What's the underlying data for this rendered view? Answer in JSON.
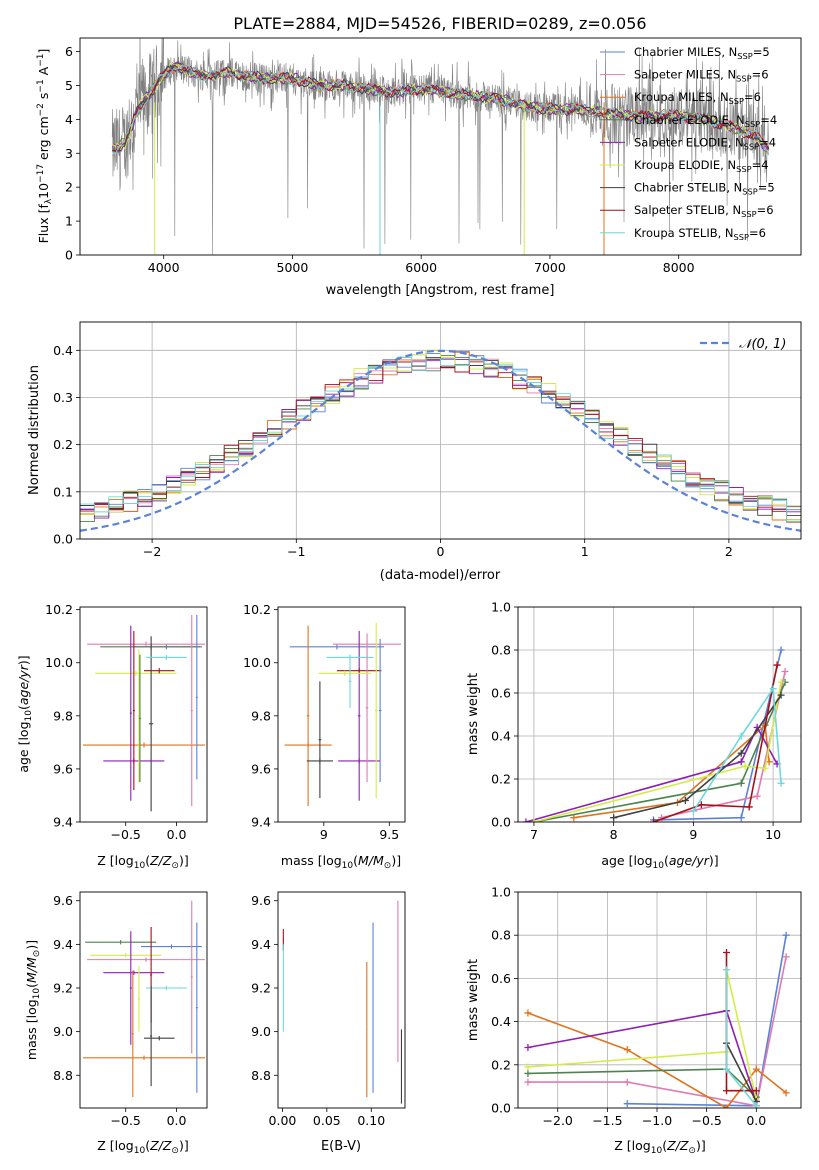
{
  "figure_title": "PLATE=2884, MJD=54526, FIBERID=0289, z=0.056",
  "colors": {
    "chabrier_miles": "#5b82d9",
    "salpeter_miles": "#e07bb1",
    "kroupa_miles": "#e0731f",
    "chabrier_elodie": "#4e8350",
    "salpeter_elodie": "#8e1fb5",
    "kroupa_elodie": "#d4ec4a",
    "chabrier_stelib": "#404040",
    "salpeter_stelib": "#a80f1a",
    "kroupa_stelib": "#6fd8dc",
    "data": "#808080"
  },
  "chart_data": [
    {
      "id": "spectrum",
      "type": "line",
      "title": "PLATE=2884, MJD=54526, FIBERID=0289, z=0.056",
      "xlabel": "wavelength [Angstrom, rest frame]",
      "ylabel": "Flux [f_λ 10^-17 erg cm^-2 s^-1 A^-1]",
      "xlim": [
        3350,
        8950
      ],
      "ylim": [
        0,
        6.4
      ],
      "xticks": [
        4000,
        5000,
        6000,
        7000,
        8000
      ],
      "yticks": [
        0,
        1,
        2,
        3,
        4,
        5,
        6
      ],
      "legend_position": "top-right",
      "continuum": {
        "x": [
          3600,
          3700,
          3800,
          3900,
          4000,
          4100,
          4200,
          4300,
          4400,
          4500,
          4600,
          4800,
          5000,
          5200,
          5400,
          5600,
          5800,
          6000,
          6200,
          6400,
          6600,
          6800,
          7000,
          7200,
          7400,
          7600,
          7800,
          8000,
          8200,
          8400,
          8600,
          8700
        ],
        "y": [
          3.1,
          3.3,
          4.3,
          4.8,
          5.3,
          5.6,
          5.4,
          5.3,
          5.3,
          5.4,
          5.3,
          5.2,
          5.2,
          5.0,
          5.0,
          4.9,
          4.8,
          4.9,
          4.8,
          4.7,
          4.6,
          4.4,
          4.3,
          4.3,
          4.2,
          4.1,
          4.1,
          4.1,
          4.0,
          3.8,
          3.5,
          3.1
        ]
      },
      "series": [
        {
          "key": "chabrier_miles",
          "label": "Chabrier MILES, N",
          "sub": "SSP",
          "tail": "=5"
        },
        {
          "key": "salpeter_miles",
          "label": "Salpeter MILES, N",
          "sub": "SSP",
          "tail": "=6"
        },
        {
          "key": "kroupa_miles",
          "label": "Kroupa MILES, N",
          "sub": "SSP",
          "tail": "=6"
        },
        {
          "key": "chabrier_elodie",
          "label": "Chabrier ELODIE, N",
          "sub": "SSP",
          "tail": "=4"
        },
        {
          "key": "salpeter_elodie",
          "label": "Salpeter ELODIE, N",
          "sub": "SSP",
          "tail": "=4"
        },
        {
          "key": "kroupa_elodie",
          "label": "Kroupa ELODIE, N",
          "sub": "SSP",
          "tail": "=4"
        },
        {
          "key": "chabrier_stelib",
          "label": "Chabrier STELIB, N",
          "sub": "SSP",
          "tail": "=5"
        },
        {
          "key": "salpeter_stelib",
          "label": "Salpeter STELIB, N",
          "sub": "SSP",
          "tail": "=6"
        },
        {
          "key": "kroupa_stelib",
          "label": "Kroupa STELIB, N",
          "sub": "SSP",
          "tail": "=6"
        }
      ]
    },
    {
      "id": "residuals",
      "type": "step-histogram",
      "xlabel": "(data-model)/error",
      "ylabel": "Normed distribution",
      "xlim": [
        -2.5,
        2.5
      ],
      "ylim": [
        0,
        0.46
      ],
      "xticks": [
        -2,
        -1,
        0,
        1,
        2
      ],
      "xtick_labels": [
        "−2",
        "−1",
        "0",
        "1",
        "2"
      ],
      "yticks": [
        0.0,
        0.1,
        0.2,
        0.3,
        0.4
      ],
      "bin_width": 0.1,
      "bin_start": -2.5,
      "grid": true,
      "legend_position": "top-right",
      "legend_label": "𝒩(0, 1)",
      "reference_curve": {
        "type": "gaussian",
        "mean": 0,
        "sigma": 1
      }
    },
    {
      "id": "age_vs_Z",
      "type": "errorbar",
      "xlabel": "Z [log10(Z/Z⊙)]",
      "ylabel": "age [log10(age/yr)]",
      "xlim": [
        -0.95,
        0.3
      ],
      "ylim": [
        9.4,
        10.21
      ],
      "xticks": [
        -0.5,
        0.0
      ],
      "xtick_labels": [
        "−0.5",
        "0.0"
      ],
      "yticks": [
        9.4,
        9.6,
        9.8,
        10.0,
        10.2
      ],
      "points": [
        {
          "key": "chabrier_miles",
          "x": -0.1,
          "xerr": 0.33,
          "y": 10.06,
          "yerr": 0.01
        },
        {
          "key": "salpeter_miles",
          "x": -0.3,
          "xerr": 0.58,
          "y": 10.07,
          "yerr": 0.01
        },
        {
          "key": "kroupa_miles",
          "x": -0.32,
          "xerr": 0.6,
          "y": 9.69,
          "yerr": 0.01
        },
        {
          "key": "chabrier_elodie",
          "x": -0.25,
          "xerr": 0.5,
          "y": 10.06,
          "yerr": 0.01
        },
        {
          "key": "salpeter_elodie",
          "x": -0.42,
          "xerr": 0.3,
          "y": 9.63,
          "yerr": 0.01
        },
        {
          "key": "kroupa_elodie",
          "x": -0.4,
          "xerr": 0.4,
          "y": 9.96,
          "yerr": 0.01
        },
        {
          "key": "chabrier_stelib",
          "x": -0.25,
          "xerr": 0.02,
          "y": 9.77,
          "yerr": 0.33
        },
        {
          "key": "salpeter_stelib",
          "x": -0.17,
          "xerr": 0.15,
          "y": 9.97,
          "yerr": 0.01
        },
        {
          "key": "kroupa_stelib",
          "x": -0.1,
          "xerr": 0.2,
          "y": 10.02,
          "yerr": 0.01
        },
        {
          "key": "salpeter_miles",
          "x": 0.15,
          "xerr": 0.01,
          "y": 9.82,
          "yerr": 0.36
        },
        {
          "key": "chabrier_miles",
          "x": 0.2,
          "xerr": 0.01,
          "y": 9.87,
          "yerr": 0.31
        },
        {
          "key": "salpeter_elodie",
          "x": -0.45,
          "xerr": 0.01,
          "y": 9.81,
          "yerr": 0.33
        },
        {
          "key": "salpeter_stelib",
          "x": -0.42,
          "xerr": 0.01,
          "y": 9.82,
          "yerr": 0.3
        },
        {
          "key": "kroupa_elodie",
          "x": -0.37,
          "xerr": 0.01,
          "y": 9.8,
          "yerr": 0.25
        },
        {
          "key": "chabrier_elodie",
          "x": -0.36,
          "xerr": 0.01,
          "y": 9.79,
          "yerr": 0.24
        }
      ]
    },
    {
      "id": "age_vs_mass",
      "type": "errorbar",
      "xlabel": "mass [log10(M/M⊙)]",
      "xlim": [
        8.65,
        9.62
      ],
      "ylim": [
        9.4,
        10.21
      ],
      "xticks": [
        9.0,
        9.5
      ],
      "yticks": [
        9.4,
        9.6,
        9.8,
        10.0,
        10.2
      ],
      "points": [
        {
          "key": "chabrier_miles",
          "x": 9.1,
          "xerr": 0.36,
          "y": 10.06,
          "yerr": 0.01
        },
        {
          "key": "salpeter_miles",
          "x": 9.33,
          "xerr": 0.26,
          "y": 10.07,
          "yerr": 0.01
        },
        {
          "key": "kroupa_miles",
          "x": 8.88,
          "xerr": 0.18,
          "y": 9.69,
          "yerr": 0.01
        },
        {
          "key": "kroupa_miles",
          "x": 8.88,
          "xerr": 0.01,
          "y": 9.8,
          "yerr": 0.34
        },
        {
          "key": "chabrier_stelib",
          "x": 8.97,
          "xerr": 0.01,
          "y": 9.71,
          "yerr": 0.22
        },
        {
          "key": "chabrier_stelib",
          "x": 8.97,
          "xerr": 0.1,
          "y": 9.63,
          "yerr": 0.01
        },
        {
          "key": "salpeter_elodie",
          "x": 9.27,
          "xerr": 0.16,
          "y": 9.63,
          "yerr": 0.01
        },
        {
          "key": "salpeter_elodie",
          "x": 9.27,
          "xerr": 0.01,
          "y": 9.8,
          "yerr": 0.32
        },
        {
          "key": "salpeter_stelib",
          "x": 9.27,
          "xerr": 0.17,
          "y": 9.97,
          "yerr": 0.01
        },
        {
          "key": "kroupa_stelib",
          "x": 9.2,
          "xerr": 0.18,
          "y": 10.02,
          "yerr": 0.01
        },
        {
          "key": "kroupa_stelib",
          "x": 9.2,
          "xerr": 0.01,
          "y": 9.93,
          "yerr": 0.1
        },
        {
          "key": "kroupa_elodie",
          "x": 9.4,
          "xerr": 0.01,
          "y": 9.82,
          "yerr": 0.33
        },
        {
          "key": "chabrier_miles",
          "x": 9.43,
          "xerr": 0.01,
          "y": 9.82,
          "yerr": 0.27
        },
        {
          "key": "salpeter_miles",
          "x": 9.33,
          "xerr": 0.01,
          "y": 9.83,
          "yerr": 0.28
        },
        {
          "key": "kroupa_elodie",
          "x": 9.16,
          "xerr": 0.2,
          "y": 9.96,
          "yerr": 0.01
        }
      ]
    },
    {
      "id": "massweight_vs_age",
      "type": "line",
      "xlabel": "age [log10(age/yr)]",
      "ylabel": "mass weight",
      "xlim": [
        6.8,
        10.35
      ],
      "ylim": [
        0,
        1.0
      ],
      "xticks": [
        7,
        8,
        9,
        10
      ],
      "yticks": [
        0.0,
        0.2,
        0.4,
        0.6,
        0.8,
        1.0
      ],
      "grid": true,
      "series": [
        {
          "key": "chabrier_miles",
          "x": [
            8.5,
            9.6,
            10.1
          ],
          "y": [
            0.01,
            0.02,
            0.8
          ]
        },
        {
          "key": "salpeter_miles",
          "x": [
            8.6,
            9.8,
            10.15
          ],
          "y": [
            0.02,
            0.12,
            0.7
          ]
        },
        {
          "key": "kroupa_miles",
          "x": [
            7.5,
            8.8,
            9.9,
            9.95
          ],
          "y": [
            0.02,
            0.09,
            0.45,
            0.28
          ]
        },
        {
          "key": "chabrier_elodie",
          "x": [
            7.0,
            9.6,
            10.15
          ],
          "y": [
            0.0,
            0.18,
            0.65
          ]
        },
        {
          "key": "salpeter_elodie",
          "x": [
            6.9,
            9.6,
            9.8,
            10.05
          ],
          "y": [
            0.0,
            0.28,
            0.44,
            0.27
          ]
        },
        {
          "key": "kroupa_elodie",
          "x": [
            7.0,
            9.65,
            9.9,
            10.1
          ],
          "y": [
            0.0,
            0.26,
            0.25,
            0.65
          ]
        },
        {
          "key": "chabrier_stelib",
          "x": [
            8.0,
            8.9,
            9.6,
            10.1
          ],
          "y": [
            0.02,
            0.1,
            0.32,
            0.59
          ]
        },
        {
          "key": "salpeter_stelib",
          "x": [
            8.5,
            9.1,
            9.7,
            10.05
          ],
          "y": [
            0.0,
            0.08,
            0.07,
            0.73
          ]
        },
        {
          "key": "kroupa_stelib",
          "x": [
            9.0,
            9.6,
            10.0,
            10.1
          ],
          "y": [
            0.05,
            0.4,
            0.62,
            0.18
          ]
        }
      ]
    },
    {
      "id": "mass_vs_Z",
      "type": "errorbar",
      "xlabel": "Z [log10(Z/Z⊙)]",
      "ylabel": "mass [log10(M/M⊙)]",
      "xlim": [
        -0.95,
        0.3
      ],
      "ylim": [
        8.65,
        9.64
      ],
      "xticks": [
        -0.5,
        0.0
      ],
      "xtick_labels": [
        "−0.5",
        "0.0"
      ],
      "yticks": [
        8.8,
        9.0,
        9.2,
        9.4,
        9.6
      ],
      "points": [
        {
          "key": "chabrier_miles",
          "x": -0.05,
          "xerr": 0.3,
          "y": 9.39,
          "yerr": 0.01
        },
        {
          "key": "salpeter_miles",
          "x": -0.3,
          "xerr": 0.58,
          "y": 9.33,
          "yerr": 0.01
        },
        {
          "key": "kroupa_miles",
          "x": -0.32,
          "xerr": 0.6,
          "y": 8.88,
          "yerr": 0.01
        },
        {
          "key": "chabrier_elodie",
          "x": -0.55,
          "xerr": 0.35,
          "y": 9.41,
          "yerr": 0.01
        },
        {
          "key": "salpeter_elodie",
          "x": -0.42,
          "xerr": 0.3,
          "y": 9.27,
          "yerr": 0.01
        },
        {
          "key": "kroupa_elodie",
          "x": -0.5,
          "xerr": 0.35,
          "y": 9.35,
          "yerr": 0.01
        },
        {
          "key": "chabrier_stelib",
          "x": -0.17,
          "xerr": 0.15,
          "y": 8.97,
          "yerr": 0.01
        },
        {
          "key": "salpeter_stelib",
          "x": -0.25,
          "xerr": 0.01,
          "y": 9.26,
          "yerr": 0.22
        },
        {
          "key": "kroupa_stelib",
          "x": -0.1,
          "xerr": 0.2,
          "y": 9.2,
          "yerr": 0.01
        },
        {
          "key": "salpeter_miles",
          "x": 0.15,
          "xerr": 0.01,
          "y": 9.25,
          "yerr": 0.35
        },
        {
          "key": "chabrier_miles",
          "x": 0.2,
          "xerr": 0.01,
          "y": 9.11,
          "yerr": 0.39
        },
        {
          "key": "salpeter_elodie",
          "x": -0.45,
          "xerr": 0.01,
          "y": 9.2,
          "yerr": 0.26
        },
        {
          "key": "kroupa_elodie",
          "x": -0.37,
          "xerr": 0.01,
          "y": 9.15,
          "yerr": 0.15
        },
        {
          "key": "kroupa_miles",
          "x": -0.43,
          "xerr": 0.01,
          "y": 8.99,
          "yerr": 0.29
        },
        {
          "key": "chabrier_stelib",
          "x": -0.25,
          "xerr": 0.01,
          "y": 8.98,
          "yerr": 0.23
        }
      ]
    },
    {
      "id": "mass_vs_ebv",
      "type": "errorbar",
      "xlabel": "E(B-V)",
      "xlim": [
        -0.005,
        0.138
      ],
      "ylim": [
        8.65,
        9.64
      ],
      "xticks": [
        0.0,
        0.05,
        0.1
      ],
      "yticks": [
        8.8,
        9.0,
        9.2,
        9.4,
        9.6
      ],
      "points": [
        {
          "key": "salpeter_stelib",
          "x": 0.001,
          "xerr": 0.0005,
          "y": 9.42,
          "yerr": 0.05
        },
        {
          "key": "kroupa_stelib",
          "x": 0.001,
          "xerr": 0.0005,
          "y": 9.2,
          "yerr": 0.2
        },
        {
          "key": "kroupa_miles",
          "x": 0.095,
          "xerr": 0.0005,
          "y": 9.01,
          "yerr": 0.31
        },
        {
          "key": "chabrier_miles",
          "x": 0.102,
          "xerr": 0.0005,
          "y": 9.11,
          "yerr": 0.39
        },
        {
          "key": "salpeter_miles",
          "x": 0.13,
          "xerr": 0.0005,
          "y": 9.23,
          "yerr": 0.37
        },
        {
          "key": "chabrier_stelib",
          "x": 0.134,
          "xerr": 0.0005,
          "y": 8.84,
          "yerr": 0.17
        }
      ]
    },
    {
      "id": "massweight_vs_Z",
      "type": "line",
      "xlabel": "Z [log10(Z/Z⊙)]",
      "ylabel": "mass weight",
      "xlim": [
        -2.4,
        0.45
      ],
      "ylim": [
        0,
        1.0
      ],
      "xticks": [
        -2.0,
        -1.5,
        -1.0,
        -0.5,
        0.0
      ],
      "xtick_labels": [
        "−2.0",
        "−1.5",
        "−1.0",
        "−0.5",
        "0.0"
      ],
      "yticks": [
        0.0,
        0.2,
        0.4,
        0.6,
        0.8,
        1.0
      ],
      "grid": true,
      "series": [
        {
          "key": "chabrier_miles",
          "x": [
            -1.3,
            0.0,
            0.3
          ],
          "y": [
            0.02,
            0.01,
            0.8
          ]
        },
        {
          "key": "salpeter_miles",
          "x": [
            -2.3,
            -1.3,
            0.0,
            0.3
          ],
          "y": [
            0.12,
            0.12,
            0.01,
            0.7
          ]
        },
        {
          "key": "kroupa_miles",
          "x": [
            -2.3,
            -1.3,
            -0.3,
            0.0,
            0.3
          ],
          "y": [
            0.44,
            0.27,
            0.0,
            0.18,
            0.07
          ]
        },
        {
          "key": "chabrier_elodie",
          "x": [
            -2.3,
            -0.3,
            0.0
          ],
          "y": [
            0.16,
            0.18,
            0.05
          ]
        },
        {
          "key": "salpeter_elodie",
          "x": [
            -2.3,
            -0.3,
            0.0
          ],
          "y": [
            0.28,
            0.45,
            0.03
          ]
        },
        {
          "key": "kroupa_elodie",
          "x": [
            -2.3,
            -0.3,
            -0.3,
            0.0
          ],
          "y": [
            0.19,
            0.26,
            0.64,
            0.04
          ]
        },
        {
          "key": "chabrier_stelib",
          "x": [
            -0.3,
            0.0
          ],
          "y": [
            0.3,
            0.03
          ]
        },
        {
          "key": "salpeter_stelib",
          "x": [
            -0.3,
            -0.3,
            0.0
          ],
          "y": [
            0.72,
            0.08,
            0.08
          ]
        },
        {
          "key": "kroupa_stelib",
          "x": [
            -0.3,
            -0.3,
            0.0
          ],
          "y": [
            0.64,
            0.18,
            0.01
          ]
        }
      ]
    }
  ]
}
